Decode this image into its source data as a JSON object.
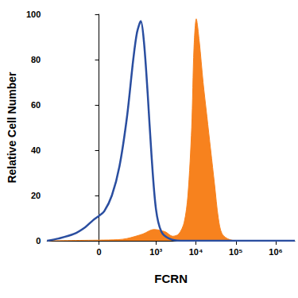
{
  "chart_data": {
    "type": "line",
    "xlabel": "FCRN",
    "ylabel": "Relative Cell Number",
    "xlim": [
      -745,
      3000000
    ],
    "xticks": [
      0,
      {
        "value": 1000,
        "label": "10³"
      },
      {
        "value": 10000,
        "label": "10⁴"
      },
      {
        "value": 100000,
        "label": "10⁵"
      },
      {
        "value": 1000000,
        "label": "10⁶"
      }
    ],
    "ylim": [
      0,
      100
    ],
    "yticks": [
      0,
      20,
      40,
      60,
      80,
      100
    ],
    "grid": false,
    "series": [
      {
        "type": "area",
        "color": "#f7821e",
        "x": [
          -745,
          0,
          100,
          182,
          470,
          880,
          1690,
          2620,
          3730,
          5070,
          6310,
          7850,
          8950,
          10230,
          12180,
          15170,
          18880,
          23500,
          29300,
          36500,
          45400,
          70400,
          135800,
          3000000
        ],
        "values": [
          0,
          0.3,
          0.5,
          1,
          3,
          5,
          4,
          2,
          3,
          8,
          20,
          50,
          85,
          98,
          88,
          70,
          55,
          40,
          25,
          10,
          3,
          0.5,
          0,
          0
        ]
      },
      {
        "type": "line",
        "color": "#2a4ea0",
        "x": [
          -745,
          -380,
          -151,
          -66,
          -27,
          0,
          23,
          61,
          111,
          182,
          265,
          332,
          415,
          497,
          619,
          771,
          1000,
          1366,
          2120,
          4095,
          3000000
        ],
        "values": [
          0,
          1,
          3,
          6,
          9,
          11,
          13,
          20,
          33,
          55,
          80,
          92,
          97,
          88,
          65,
          38,
          14,
          4,
          1,
          0,
          0
        ]
      }
    ]
  }
}
